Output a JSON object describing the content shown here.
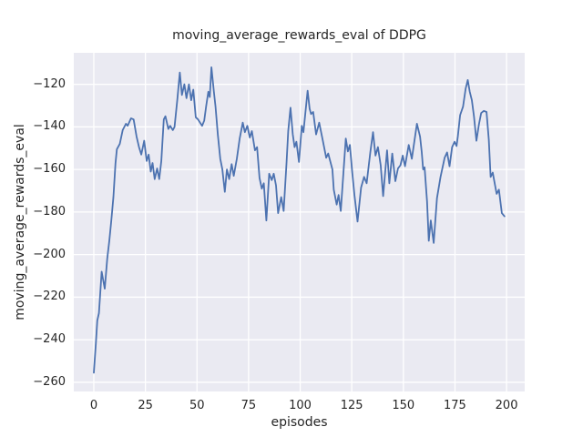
{
  "chart_data": {
    "type": "line",
    "title": "moving_average_rewards_eval of DDPG",
    "xlabel": "episodes",
    "ylabel": "moving_average_rewards_eval",
    "x_ticks": [
      0,
      25,
      50,
      75,
      100,
      125,
      150,
      175,
      200
    ],
    "y_ticks": [
      -120,
      -140,
      -160,
      -180,
      -200,
      -220,
      -240,
      -260
    ],
    "xlim": [
      -9.7,
      208.8
    ],
    "ylim": [
      -264.3,
      -105.2
    ],
    "grid": true,
    "legend_position": "none",
    "style": {
      "axes_bg": "#EAEAF2",
      "grid_color": "#FFFFFF",
      "line_color": "#4C72B0",
      "text_color": "#262626",
      "fig_bg": "#FFFFFF",
      "line_width": 1.8
    },
    "series": [
      {
        "name": "moving_average_rewards_eval",
        "x": [
          0,
          1,
          1.7,
          2.5,
          3.8,
          5.3,
          6.5,
          7.5,
          8.5,
          9.5,
          10.5,
          11.2,
          12.6,
          14,
          15.6,
          16.4,
          18,
          19.3,
          20.7,
          21.9,
          23,
          24.4,
          25.6,
          26.6,
          27.6,
          28.5,
          29.5,
          30.7,
          31.7,
          32.7,
          33.9,
          34.7,
          36.1,
          37,
          38.3,
          39.1,
          40.5,
          41.7,
          42.7,
          43.9,
          44.9,
          46.1,
          47.2,
          48.2,
          49.4,
          50.5,
          51.5,
          52.5,
          53.5,
          54.5,
          55.5,
          56.2,
          57,
          58.2,
          59,
          60.1,
          61.3,
          62.3,
          63.5,
          64.5,
          65.6,
          66.8,
          67.8,
          69.3,
          70.7,
          72.2,
          73.2,
          74.4,
          75.6,
          76.6,
          78.1,
          79.1,
          80.3,
          81.4,
          82.4,
          83.6,
          85,
          86.2,
          87.2,
          88.3,
          89.3,
          90.8,
          92,
          93.4,
          94.2,
          95.3,
          96.4,
          97.3,
          98.2,
          99.4,
          100.8,
          101.6,
          103.6,
          104.6,
          105.3,
          106.3,
          107.7,
          109.2,
          111,
          112.6,
          113.6,
          115.6,
          116.3,
          117.7,
          118.6,
          119.7,
          122.1,
          123.1,
          124.1,
          125.2,
          126.3,
          127.8,
          129.5,
          131,
          132.2,
          134,
          135.3,
          136.5,
          137.7,
          139,
          140.2,
          142.1,
          143.2,
          144.6,
          146.1,
          147.4,
          148.6,
          149.7,
          150.8,
          152.6,
          154.1,
          156.6,
          158.1,
          158.9,
          159.6,
          160.3,
          161.5,
          162.3,
          163.3,
          164.7,
          166.3,
          168,
          170,
          171.2,
          172.4,
          173.6,
          174.8,
          175.8,
          176.4,
          177.5,
          178.9,
          180.2,
          181.2,
          182.2,
          183.2,
          184.2,
          185.4,
          186.6,
          187.7,
          189,
          190.3,
          191.4,
          192.3,
          193.3,
          195.2,
          196.3,
          197.7,
          199
        ],
        "y": [
          -255.5,
          -242,
          -231,
          -227.5,
          -208,
          -216,
          -202,
          -193.5,
          -184,
          -173,
          -157,
          -150.5,
          -148,
          -141.5,
          -138.5,
          -139.5,
          -136,
          -136.5,
          -144.5,
          -149.5,
          -153,
          -146.5,
          -156,
          -153,
          -161,
          -157,
          -164.5,
          -159.5,
          -164.5,
          -156,
          -136.5,
          -135,
          -141,
          -139.5,
          -141.5,
          -140,
          -127,
          -114.5,
          -125,
          -120,
          -126.5,
          -120,
          -127.5,
          -122.5,
          -135.5,
          -136.5,
          -138,
          -139.5,
          -137,
          -130,
          -123.5,
          -126,
          -112,
          -123.5,
          -130.5,
          -143.5,
          -155,
          -160,
          -170.5,
          -160,
          -164.5,
          -157.5,
          -163,
          -155,
          -145.5,
          -138,
          -142.5,
          -139.5,
          -145,
          -142,
          -151,
          -149.5,
          -164,
          -169,
          -166.5,
          -184,
          -162,
          -165,
          -162,
          -167.5,
          -180.5,
          -173,
          -179.5,
          -156.5,
          -142,
          -131,
          -143.5,
          -149.5,
          -147,
          -156.5,
          -139.5,
          -142.5,
          -123,
          -131.5,
          -134,
          -133,
          -143.5,
          -138,
          -146.5,
          -154.5,
          -152.5,
          -160,
          -169.5,
          -176.5,
          -172,
          -179.5,
          -145.5,
          -151.5,
          -148.5,
          -161,
          -172,
          -184.5,
          -168.5,
          -163.5,
          -166.5,
          -152,
          -142.5,
          -153.5,
          -149.5,
          -158,
          -172.5,
          -151,
          -166.5,
          -152.5,
          -165.5,
          -159.5,
          -158,
          -153.5,
          -158.5,
          -148.5,
          -155,
          -138.5,
          -144.5,
          -152,
          -160,
          -159,
          -175,
          -193.5,
          -184,
          -194.5,
          -173.5,
          -163.5,
          -154.5,
          -152,
          -158.5,
          -149.5,
          -147,
          -149,
          -144.5,
          -134.5,
          -130.5,
          -122,
          -118,
          -123.5,
          -127.5,
          -135,
          -146.5,
          -139,
          -133.5,
          -132.5,
          -133,
          -146,
          -163.5,
          -161.5,
          -171.5,
          -169.5,
          -180.5,
          -182
        ]
      }
    ]
  }
}
